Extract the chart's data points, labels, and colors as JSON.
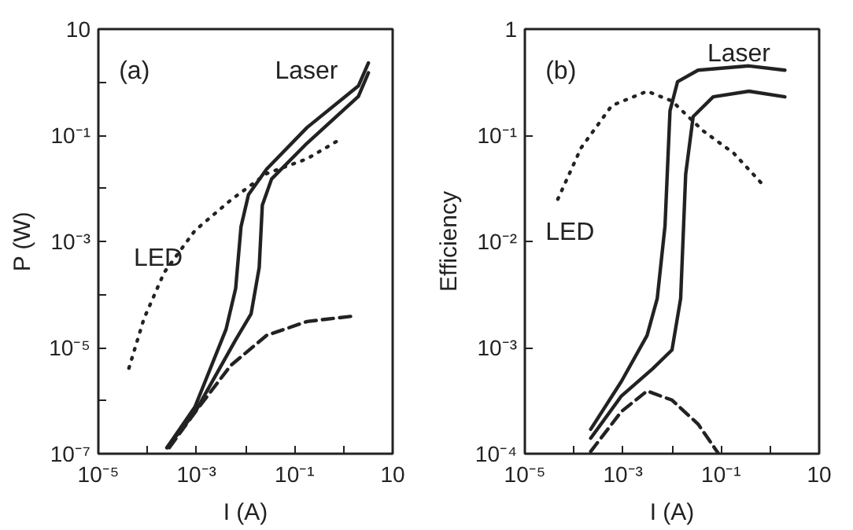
{
  "chart_data": [
    {
      "type": "line",
      "xlabel": "I (A)",
      "ylabel": "P (W)",
      "log": "xy",
      "grid": false,
      "marker": "none",
      "xlim": [
        1e-05,
        10
      ],
      "ylim": [
        1e-07,
        10
      ],
      "xticks": [
        {
          "value": 1e-05,
          "label": "10⁻⁵"
        },
        {
          "value": 0.0001,
          "label": null
        },
        {
          "value": 0.001,
          "label": "10⁻³"
        },
        {
          "value": 0.01,
          "label": null
        },
        {
          "value": 0.1,
          "label": "10⁻¹"
        },
        {
          "value": 1,
          "label": null
        },
        10
      ],
      "yticks": [
        {
          "value": 1e-07,
          "label": "10⁻⁷"
        },
        {
          "value": 1e-06,
          "label": null
        },
        {
          "value": 1e-05,
          "label": "10⁻⁵"
        },
        {
          "value": 0.0001,
          "label": null
        },
        {
          "value": 0.001,
          "label": "10⁻³"
        },
        {
          "value": 0.01,
          "label": null
        },
        {
          "value": 0.1,
          "label": "10⁻¹"
        },
        {
          "value": 1,
          "label": null
        },
        10
      ],
      "annotations": [
        "(a)",
        "Laser",
        "LED"
      ],
      "series": [
        {
          "color": "#222222",
          "line_style": "solid",
          "x": [
            0.00025,
            0.00093,
            0.004,
            0.0063,
            0.0081,
            0.0115,
            0.027,
            0.18,
            2.0,
            3.2
          ],
          "values": [
            1.3e-07,
            7.6e-07,
            2.2e-05,
            0.00013,
            0.0019,
            0.0076,
            0.023,
            0.14,
            0.85,
            2.3
          ]
        },
        {
          "color": "#222222",
          "line_style": "solid",
          "x": [
            0.00025,
            0.00093,
            0.0063,
            0.013,
            0.019,
            0.022,
            0.034,
            0.18,
            2.0,
            3.2
          ],
          "values": [
            1.3e-07,
            6e-07,
            1.4e-05,
            4.3e-05,
            0.00032,
            0.0048,
            0.015,
            0.071,
            0.54,
            1.5
          ]
        },
        {
          "color": "#222222",
          "line_style": "dotted",
          "x": [
            4.2e-05,
            8.5e-05,
            0.00022,
            0.00093,
            0.005,
            0.027,
            0.18,
            0.95
          ],
          "values": [
            4.1e-06,
            3.5e-05,
            0.00026,
            0.0016,
            0.006,
            0.019,
            0.036,
            0.089
          ]
        },
        {
          "color": "#222222",
          "line_style": "dashed",
          "x": [
            0.00028,
            0.00093,
            0.005,
            0.027,
            0.18,
            1.5
          ],
          "values": [
            1.3e-07,
            6e-07,
            4.6e-06,
            1.7e-05,
            3.1e-05,
            3.9e-05
          ]
        }
      ]
    },
    {
      "type": "line",
      "xlabel": "I (A)",
      "ylabel": "Efficiency",
      "log": "xy",
      "grid": false,
      "marker": "none",
      "xlim": [
        1e-05,
        10
      ],
      "ylim": [
        0.0001,
        1
      ],
      "xticks": [
        {
          "value": 1e-05,
          "label": "10⁻⁵"
        },
        {
          "value": 0.0001,
          "label": null
        },
        {
          "value": 0.001,
          "label": "10⁻³"
        },
        {
          "value": 0.01,
          "label": null
        },
        {
          "value": 0.1,
          "label": "10⁻¹"
        },
        {
          "value": 1,
          "label": null
        },
        10
      ],
      "yticks": [
        {
          "value": 0.0001,
          "label": "10⁻⁴"
        },
        {
          "value": 0.001,
          "label": "10⁻³"
        },
        {
          "value": 0.01,
          "label": "10⁻²"
        },
        {
          "value": 0.1,
          "label": "10⁻¹"
        },
        1
      ],
      "annotations": [
        "(b)",
        "Laser",
        "LED"
      ],
      "series": [
        {
          "color": "#222222",
          "line_style": "solid",
          "x": [
            0.00022,
            0.00093,
            0.0031,
            0.005,
            0.0072,
            0.0091,
            0.013,
            0.034,
            0.37,
            2.0
          ],
          "values": [
            0.00017,
            0.00048,
            0.0013,
            0.0029,
            0.014,
            0.17,
            0.32,
            0.41,
            0.45,
            0.41
          ]
        },
        {
          "color": "#222222",
          "line_style": "solid",
          "x": [
            0.00022,
            0.00093,
            0.004,
            0.01,
            0.015,
            0.019,
            0.027,
            0.069,
            0.37,
            2.0
          ],
          "values": [
            0.00014,
            0.00035,
            0.00063,
            0.00095,
            0.0029,
            0.043,
            0.15,
            0.23,
            0.26,
            0.23
          ]
        },
        {
          "color": "#222222",
          "line_style": "dotted",
          "x": [
            4.7e-05,
            0.00014,
            0.00059,
            0.0031,
            0.01,
            0.043,
            0.18,
            0.68
          ],
          "values": [
            0.025,
            0.076,
            0.19,
            0.26,
            0.21,
            0.11,
            0.068,
            0.035
          ]
        },
        {
          "color": "#222222",
          "line_style": "dashed",
          "x": [
            0.00022,
            0.00093,
            0.0031,
            0.01,
            0.034,
            0.089
          ],
          "values": [
            0.000105,
            0.00025,
            0.00039,
            0.00032,
            0.00019,
            0.0001
          ]
        }
      ]
    }
  ]
}
